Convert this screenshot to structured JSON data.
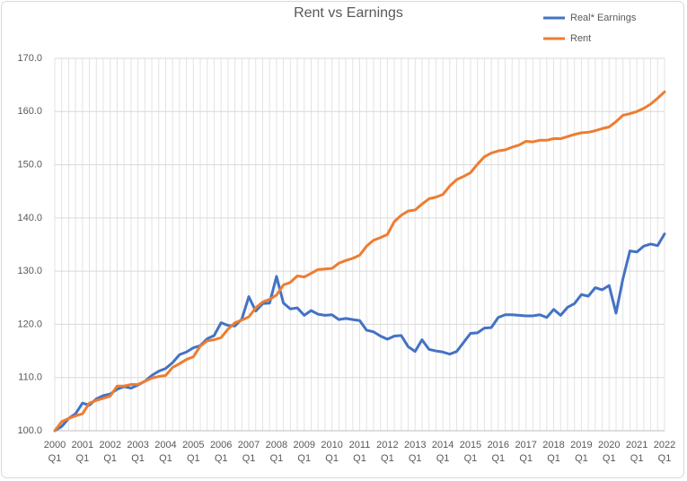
{
  "chart_data": {
    "type": "line",
    "title": "Rent vs Earnings",
    "categories": [
      [
        "2000",
        "Q1"
      ],
      null,
      null,
      null,
      [
        "2001",
        "Q1"
      ],
      null,
      null,
      null,
      [
        "2002",
        "Q1"
      ],
      null,
      null,
      null,
      [
        "2003",
        "Q1"
      ],
      null,
      null,
      null,
      [
        "2004",
        "Q1"
      ],
      null,
      null,
      null,
      [
        "2005",
        "Q1"
      ],
      null,
      null,
      null,
      [
        "2006",
        "Q1"
      ],
      null,
      null,
      null,
      [
        "2007",
        "Q1"
      ],
      null,
      null,
      null,
      [
        "2008",
        "Q1"
      ],
      null,
      null,
      null,
      [
        "2009",
        "Q1"
      ],
      null,
      null,
      null,
      [
        "2010",
        "Q1"
      ],
      null,
      null,
      null,
      [
        "2011",
        "Q1"
      ],
      null,
      null,
      null,
      [
        "2012",
        "Q1"
      ],
      null,
      null,
      null,
      [
        "2013",
        "Q1"
      ],
      null,
      null,
      null,
      [
        "2014",
        "Q1"
      ],
      null,
      null,
      null,
      [
        "2015",
        "Q1"
      ],
      null,
      null,
      null,
      [
        "2016",
        "Q1"
      ],
      null,
      null,
      null,
      [
        "2017",
        "Q1"
      ],
      null,
      null,
      null,
      [
        "2018",
        "Q1"
      ],
      null,
      null,
      null,
      [
        "2019",
        "Q1"
      ],
      null,
      null,
      null,
      [
        "2020",
        "Q1"
      ],
      null,
      null,
      null,
      [
        "2021",
        "Q1"
      ],
      null,
      null,
      null,
      [
        "2022",
        "Q1"
      ]
    ],
    "series": [
      {
        "name": "Real* Earnings",
        "color": "#4472c4",
        "values": [
          100,
          100.8,
          102.3,
          103.2,
          105.2,
          104.8,
          106,
          106.6,
          106.9,
          107.8,
          108.3,
          108.0,
          108.6,
          109.3,
          110.4,
          111.2,
          111.7,
          112.8,
          114.3,
          114.8,
          115.6,
          116.0,
          117.3,
          117.9,
          120.3,
          119.8,
          119.7,
          121.0,
          125.2,
          122.5,
          123.9,
          124.0,
          129.0,
          124.0,
          122.9,
          123.1,
          121.7,
          122.6,
          121.9,
          121.7,
          121.8,
          120.9,
          121.1,
          120.9,
          120.7,
          118.9,
          118.6,
          117.8,
          117.2,
          117.8,
          117.9,
          115.8,
          114.9,
          117.1,
          115.3,
          115.0,
          114.8,
          114.4,
          114.9,
          116.6,
          118.3,
          118.4,
          119.3,
          119.4,
          121.3,
          121.8,
          121.8,
          121.7,
          121.6,
          121.6,
          121.8,
          121.3,
          122.8,
          121.7,
          123.2,
          123.9,
          125.6,
          125.3,
          126.9,
          126.5,
          127.3,
          122.1,
          128.6,
          133.8,
          133.6,
          134.7,
          135.1,
          134.8,
          137.0
        ]
      },
      {
        "name": "Rent",
        "color": "#ed7d31",
        "values": [
          100,
          101.7,
          102.3,
          102.8,
          103.2,
          105.2,
          105.7,
          106.1,
          106.5,
          108.4,
          108.4,
          108.7,
          108.7,
          109.3,
          109.9,
          110.2,
          110.4,
          111.9,
          112.6,
          113.4,
          113.9,
          115.9,
          116.9,
          117.1,
          117.5,
          119.1,
          120.3,
          120.8,
          121.4,
          123.1,
          124.2,
          124.7,
          125.5,
          127.4,
          127.9,
          129.1,
          128.9,
          129.6,
          130.3,
          130.4,
          130.5,
          131.5,
          132.0,
          132.4,
          133.0,
          134.7,
          135.8,
          136.3,
          136.9,
          139.3,
          140.5,
          141.3,
          141.5,
          142.6,
          143.6,
          143.9,
          144.4,
          146.0,
          147.2,
          147.8,
          148.5,
          150.1,
          151.5,
          152.2,
          152.6,
          152.8,
          153.3,
          153.7,
          154.4,
          154.3,
          154.6,
          154.6,
          154.9,
          154.9,
          155.3,
          155.7,
          156.0,
          156.1,
          156.4,
          156.8,
          157.1,
          158.1,
          159.3,
          159.6,
          160.0,
          160.6,
          161.4,
          162.5,
          163.7
        ]
      }
    ],
    "ylim": [
      100,
      170
    ],
    "yticks": [
      {
        "value": 100,
        "label": "100.0"
      },
      {
        "value": 110,
        "label": "110.0"
      },
      {
        "value": 120,
        "label": "120.0"
      },
      {
        "value": 130,
        "label": "130.0"
      },
      {
        "value": 140,
        "label": "140.0"
      },
      {
        "value": 150,
        "label": "150.0"
      },
      {
        "value": 160,
        "label": "160.0"
      },
      {
        "value": 170,
        "label": "170.0"
      }
    ],
    "grid": true,
    "legend": "top-right"
  }
}
